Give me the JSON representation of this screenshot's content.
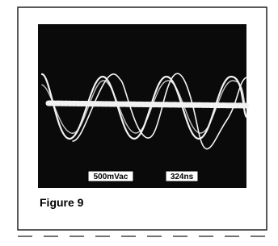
{
  "figure": {
    "caption": "Figure 9",
    "scope_labels": [
      "500mVac",
      "324ns"
    ]
  }
}
